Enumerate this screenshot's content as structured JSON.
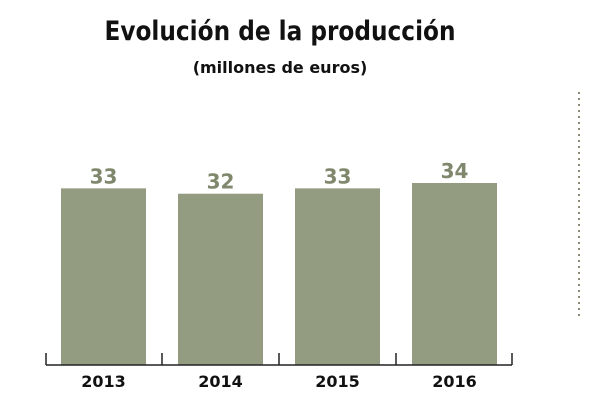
{
  "chart_data": {
    "type": "bar",
    "title": "Evolución de la producción",
    "subtitle": "(millones de euros)",
    "categories": [
      "2013",
      "2014",
      "2015",
      "2016"
    ],
    "values": [
      33,
      32,
      33,
      34
    ],
    "xlabel": "",
    "ylabel": "",
    "ylim": [
      0,
      34
    ],
    "grid": false,
    "colors": {
      "bar": "#939b80",
      "label": "#7f876c",
      "axis": "#222222",
      "divider": "#8f8a78"
    }
  }
}
